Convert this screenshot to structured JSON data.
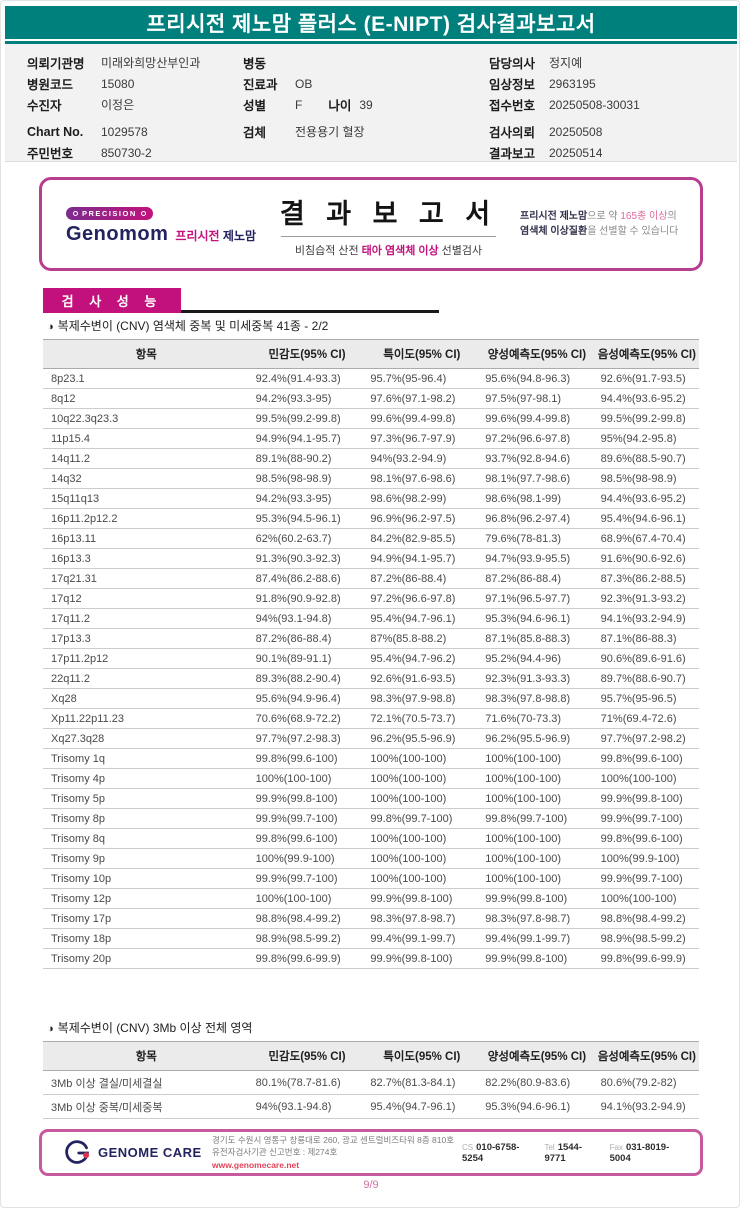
{
  "header": {
    "title": "프리시전 제노맘 플러스 (E-NIPT) 검사결과보고서",
    "teal_color": "#00807D"
  },
  "patient_info": {
    "col1": [
      {
        "label": "의뢰기관명",
        "value": "미래와희망산부인과"
      },
      {
        "label": "병원코드",
        "value": "15080"
      },
      {
        "label": "수진자",
        "value": "이정은"
      },
      {
        "label": "Chart No.",
        "value": "1029578",
        "gap": true
      },
      {
        "label": "주민번호",
        "value": "850730-2"
      }
    ],
    "col2": [
      {
        "label": "병동",
        "value": ""
      },
      {
        "label": "진료과",
        "value": "OB"
      },
      {
        "label": "성별",
        "value": "F",
        "label2": "나이",
        "value2": "39"
      },
      {
        "label": "검체",
        "value": "전용용기 혈장",
        "gap": true
      }
    ],
    "col3": [
      {
        "label": "담당의사",
        "value": "정지예"
      },
      {
        "label": "임상정보",
        "value": "2963195"
      },
      {
        "label": "접수번호",
        "value": "20250508-30031"
      },
      {
        "label": "검사의뢰",
        "value": "20250508",
        "gap": true
      },
      {
        "label": "결과보고",
        "value": "20250514"
      }
    ]
  },
  "banner": {
    "precision": "PRECISION",
    "genomom": "Genomom",
    "brand_kr_pink": "프리시전",
    "brand_kr_navy": "제노맘",
    "title": "결 과 보 고 서",
    "subtitle_pre": "비침습적 산전 ",
    "subtitle_pink": "태아 염색체 이상",
    "subtitle_post": " 선별검사",
    "note_l1_bold": "프리시전 제노맘",
    "note_l1_mid": "으로 약 ",
    "note_l1_pink": "165종 이상",
    "note_l1_end": "의",
    "note_l2_bold": "염색체 이상질환",
    "note_l2_end": "을 선별할 수 있습니다",
    "accent_color": "#C2117C",
    "border_color": "#B73E8F"
  },
  "section": {
    "label": "검 사 성 능",
    "caption1_bullet": "◑",
    "caption1": "복제수변이 (CNV) 염색체 중복 및 미세중복 41종 - 2/2",
    "caption2_bullet": "◑",
    "caption2": "복제수변이 (CNV) 3Mb 이상 전체 영역"
  },
  "performance_table": {
    "headers": [
      "항목",
      "민감도(95% CI)",
      "특이도(95% CI)",
      "양성예측도(95% CI)",
      "음성예측도(95% CI)"
    ],
    "rows": [
      [
        "8p23.1",
        "92.4%(91.4-93.3)",
        "95.7%(95-96.4)",
        "95.6%(94.8-96.3)",
        "92.6%(91.7-93.5)"
      ],
      [
        "8q12",
        "94.2%(93.3-95)",
        "97.6%(97.1-98.2)",
        "97.5%(97-98.1)",
        "94.4%(93.6-95.2)"
      ],
      [
        "10q22.3q23.3",
        "99.5%(99.2-99.8)",
        "99.6%(99.4-99.8)",
        "99.6%(99.4-99.8)",
        "99.5%(99.2-99.8)"
      ],
      [
        "11p15.4",
        "94.9%(94.1-95.7)",
        "97.3%(96.7-97.9)",
        "97.2%(96.6-97.8)",
        "95%(94.2-95.8)"
      ],
      [
        "14q11.2",
        "89.1%(88-90.2)",
        "94%(93.2-94.9)",
        "93.7%(92.8-94.6)",
        "89.6%(88.5-90.7)"
      ],
      [
        "14q32",
        "98.5%(98-98.9)",
        "98.1%(97.6-98.6)",
        "98.1%(97.7-98.6)",
        "98.5%(98-98.9)"
      ],
      [
        "15q11q13",
        "94.2%(93.3-95)",
        "98.6%(98.2-99)",
        "98.6%(98.1-99)",
        "94.4%(93.6-95.2)"
      ],
      [
        "16p11.2p12.2",
        "95.3%(94.5-96.1)",
        "96.9%(96.2-97.5)",
        "96.8%(96.2-97.4)",
        "95.4%(94.6-96.1)"
      ],
      [
        "16p13.11",
        "62%(60.2-63.7)",
        "84.2%(82.9-85.5)",
        "79.6%(78-81.3)",
        "68.9%(67.4-70.4)"
      ],
      [
        "16p13.3",
        "91.3%(90.3-92.3)",
        "94.9%(94.1-95.7)",
        "94.7%(93.9-95.5)",
        "91.6%(90.6-92.6)"
      ],
      [
        "17q21.31",
        "87.4%(86.2-88.6)",
        "87.2%(86-88.4)",
        "87.2%(86-88.4)",
        "87.3%(86.2-88.5)"
      ],
      [
        "17q12",
        "91.8%(90.9-92.8)",
        "97.2%(96.6-97.8)",
        "97.1%(96.5-97.7)",
        "92.3%(91.3-93.2)"
      ],
      [
        "17q11.2",
        "94%(93.1-94.8)",
        "95.4%(94.7-96.1)",
        "95.3%(94.6-96.1)",
        "94.1%(93.2-94.9)"
      ],
      [
        "17p13.3",
        "87.2%(86-88.4)",
        "87%(85.8-88.2)",
        "87.1%(85.8-88.3)",
        "87.1%(86-88.3)"
      ],
      [
        "17p11.2p12",
        "90.1%(89-91.1)",
        "95.4%(94.7-96.2)",
        "95.2%(94.4-96)",
        "90.6%(89.6-91.6)"
      ],
      [
        "22q11.2",
        "89.3%(88.2-90.4)",
        "92.6%(91.6-93.5)",
        "92.3%(91.3-93.3)",
        "89.7%(88.6-90.7)"
      ],
      [
        "Xq28",
        "95.6%(94.9-96.4)",
        "98.3%(97.9-98.8)",
        "98.3%(97.8-98.8)",
        "95.7%(95-96.5)"
      ],
      [
        "Xp11.22p11.23",
        "70.6%(68.9-72.2)",
        "72.1%(70.5-73.7)",
        "71.6%(70-73.3)",
        "71%(69.4-72.6)"
      ],
      [
        "Xq27.3q28",
        "97.7%(97.2-98.3)",
        "96.2%(95.5-96.9)",
        "96.2%(95.5-96.9)",
        "97.7%(97.2-98.2)"
      ],
      [
        "Trisomy 1q",
        "99.8%(99.6-100)",
        "100%(100-100)",
        "100%(100-100)",
        "99.8%(99.6-100)"
      ],
      [
        "Trisomy 4p",
        "100%(100-100)",
        "100%(100-100)",
        "100%(100-100)",
        "100%(100-100)"
      ],
      [
        "Trisomy 5p",
        "99.9%(99.8-100)",
        "100%(100-100)",
        "100%(100-100)",
        "99.9%(99.8-100)"
      ],
      [
        "Trisomy 8p",
        "99.9%(99.7-100)",
        "99.8%(99.7-100)",
        "99.8%(99.7-100)",
        "99.9%(99.7-100)"
      ],
      [
        "Trisomy 8q",
        "99.8%(99.6-100)",
        "100%(100-100)",
        "100%(100-100)",
        "99.8%(99.6-100)"
      ],
      [
        "Trisomy 9p",
        "100%(99.9-100)",
        "100%(100-100)",
        "100%(100-100)",
        "100%(99.9-100)"
      ],
      [
        "Trisomy 10p",
        "99.9%(99.7-100)",
        "100%(100-100)",
        "100%(100-100)",
        "99.9%(99.7-100)"
      ],
      [
        "Trisomy 12p",
        "100%(100-100)",
        "99.9%(99.8-100)",
        "99.9%(99.8-100)",
        "100%(100-100)"
      ],
      [
        "Trisomy 17p",
        "98.8%(98.4-99.2)",
        "98.3%(97.8-98.7)",
        "98.3%(97.8-98.7)",
        "98.8%(98.4-99.2)"
      ],
      [
        "Trisomy 18p",
        "98.9%(98.5-99.2)",
        "99.4%(99.1-99.7)",
        "99.4%(99.1-99.7)",
        "98.9%(98.5-99.2)"
      ],
      [
        "Trisomy 20p",
        "99.8%(99.6-99.9)",
        "99.9%(99.8-100)",
        "99.9%(99.8-100)",
        "99.8%(99.6-99.9)"
      ]
    ]
  },
  "region_table": {
    "headers": [
      "항목",
      "민감도(95% CI)",
      "특이도(95% CI)",
      "양성예측도(95% CI)",
      "음성예측도(95% CI)"
    ],
    "rows": [
      [
        "3Mb 이상 결실/미세결실",
        "80.1%(78.7-81.6)",
        "82.7%(81.3-84.1)",
        "82.2%(80.9-83.6)",
        "80.6%(79.2-82)"
      ],
      [
        "3Mb 이상 중복/미세중복",
        "94%(93.1-94.8)",
        "95.4%(94.7-96.1)",
        "95.3%(94.6-96.1)",
        "94.1%(93.2-94.9)"
      ]
    ]
  },
  "footer": {
    "company": "GENOME CARE",
    "address_line1": "경기도 수원시 영통구 창룡대로 260, 광교 센트럴비즈타워 8층 810호",
    "address_line2": "유전자검사기관 신고번호 : 제274호",
    "website": "www.genomecare.net",
    "contacts": [
      {
        "label": "CS",
        "value": "010-6758-5254"
      },
      {
        "label": "Tel",
        "value": "1544-9771"
      },
      {
        "label": "Fax",
        "value": "031-8019-5004"
      }
    ]
  },
  "page_number": "9/9"
}
